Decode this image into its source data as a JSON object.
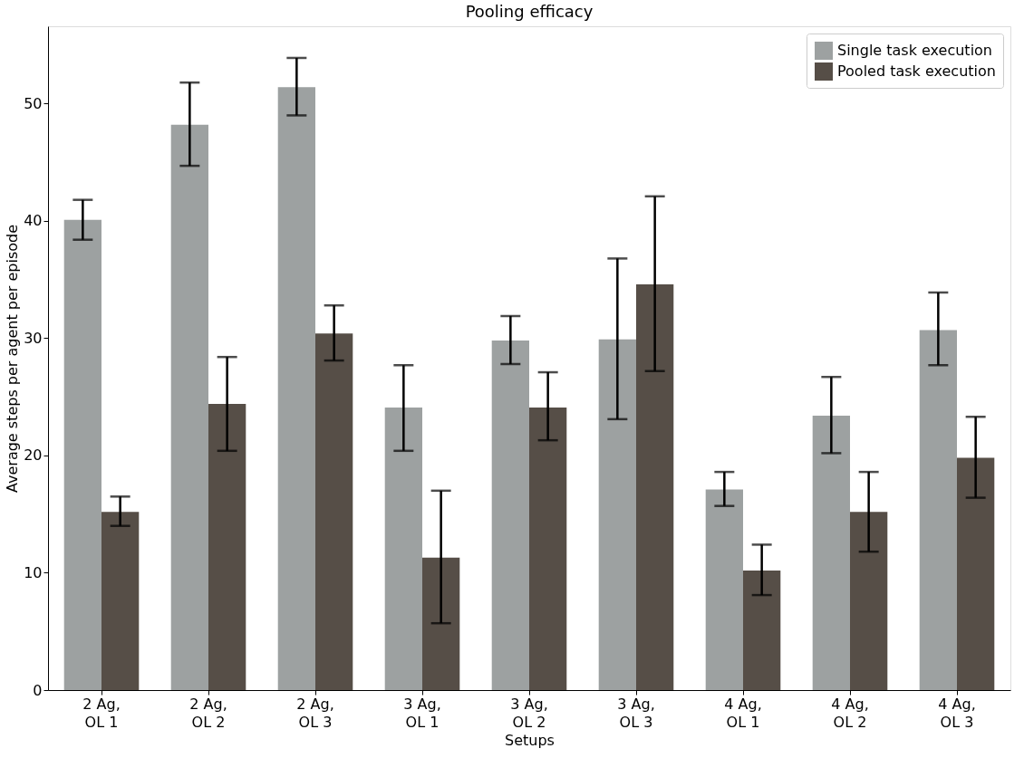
{
  "chart_data": {
    "type": "bar",
    "title": "Pooling efficacy",
    "xlabel": "Setups",
    "ylabel": "Average steps per agent per episode",
    "categories": [
      "2 Ag,\nOL 1",
      "2 Ag,\nOL 2",
      "2 Ag,\nOL 3",
      "3 Ag,\nOL 1",
      "3 Ag,\nOL 2",
      "3 Ag,\nOL 3",
      "4 Ag,\nOL 1",
      "4 Ag,\nOL 2",
      "4 Ag,\nOL 3"
    ],
    "series": [
      {
        "name": "Single task execution",
        "color": "#9da1a1",
        "values": [
          40.1,
          48.2,
          51.4,
          24.1,
          29.8,
          29.9,
          17.1,
          23.4,
          30.7
        ],
        "errors": [
          [
            38.4,
            41.8
          ],
          [
            44.7,
            51.8
          ],
          [
            49.0,
            53.9
          ],
          [
            20.4,
            27.7
          ],
          [
            27.8,
            31.9
          ],
          [
            23.1,
            36.8
          ],
          [
            15.7,
            18.6
          ],
          [
            20.2,
            26.7
          ],
          [
            27.7,
            33.9
          ]
        ]
      },
      {
        "name": "Pooled task execution",
        "color": "#564e47",
        "values": [
          15.2,
          24.4,
          30.4,
          11.3,
          24.1,
          34.6,
          10.2,
          15.2,
          19.8
        ],
        "errors": [
          [
            14.0,
            16.5
          ],
          [
            20.4,
            28.4
          ],
          [
            28.1,
            32.8
          ],
          [
            5.7,
            17.0
          ],
          [
            21.3,
            27.1
          ],
          [
            27.2,
            42.1
          ],
          [
            8.1,
            12.4
          ],
          [
            11.8,
            18.6
          ],
          [
            16.4,
            23.3
          ]
        ]
      }
    ],
    "ylim": [
      0,
      56.6
    ],
    "yticks": [
      0,
      10,
      20,
      30,
      40,
      50
    ],
    "grid": false,
    "legend": "top right"
  }
}
